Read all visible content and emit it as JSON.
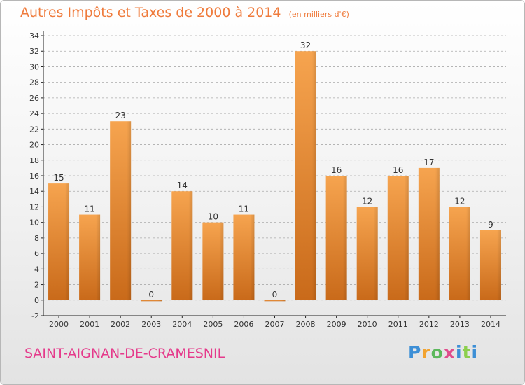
{
  "header": {
    "title": "Autres Impôts et Taxes de 2000 à 2014",
    "subtitle": "(en milliers d'€)"
  },
  "footer": {
    "commune": "SAINT-AIGNAN-DE-CRAMESNIL",
    "logo": "Proxiti"
  },
  "colors": {
    "title": "#ef7b3c",
    "commune": "#e53a8b",
    "bar_light": "#f6a44f",
    "bar_dark": "#c96a1a",
    "axis": "#222222",
    "grid": "#aaaaaa"
  },
  "chart_data": {
    "type": "bar",
    "title": "Autres Impôts et Taxes de 2000 à 2014",
    "subtitle": "(en milliers d'€)",
    "categories": [
      "2000",
      "2001",
      "2002",
      "2003",
      "2004",
      "2005",
      "2006",
      "2007",
      "2008",
      "2009",
      "2010",
      "2011",
      "2012",
      "2013",
      "2014"
    ],
    "values": [
      15,
      11,
      23,
      0,
      14,
      10,
      11,
      0,
      32,
      16,
      12,
      16,
      17,
      12,
      9
    ],
    "data_labels": [
      "15",
      "11",
      "23",
      "0",
      "14",
      "10",
      "11",
      "0",
      "32",
      "16",
      "12",
      "16",
      "17",
      "12",
      "9"
    ],
    "y_ticks": [
      "-2",
      "0",
      "2",
      "4",
      "6",
      "8",
      "10",
      "12",
      "14",
      "16",
      "18",
      "20",
      "22",
      "24",
      "26",
      "28",
      "30",
      "32",
      "34"
    ],
    "ylim": [
      -2,
      34
    ],
    "xlabel": "",
    "ylabel": "",
    "grid": "horizontal dashed",
    "legend": "none"
  }
}
